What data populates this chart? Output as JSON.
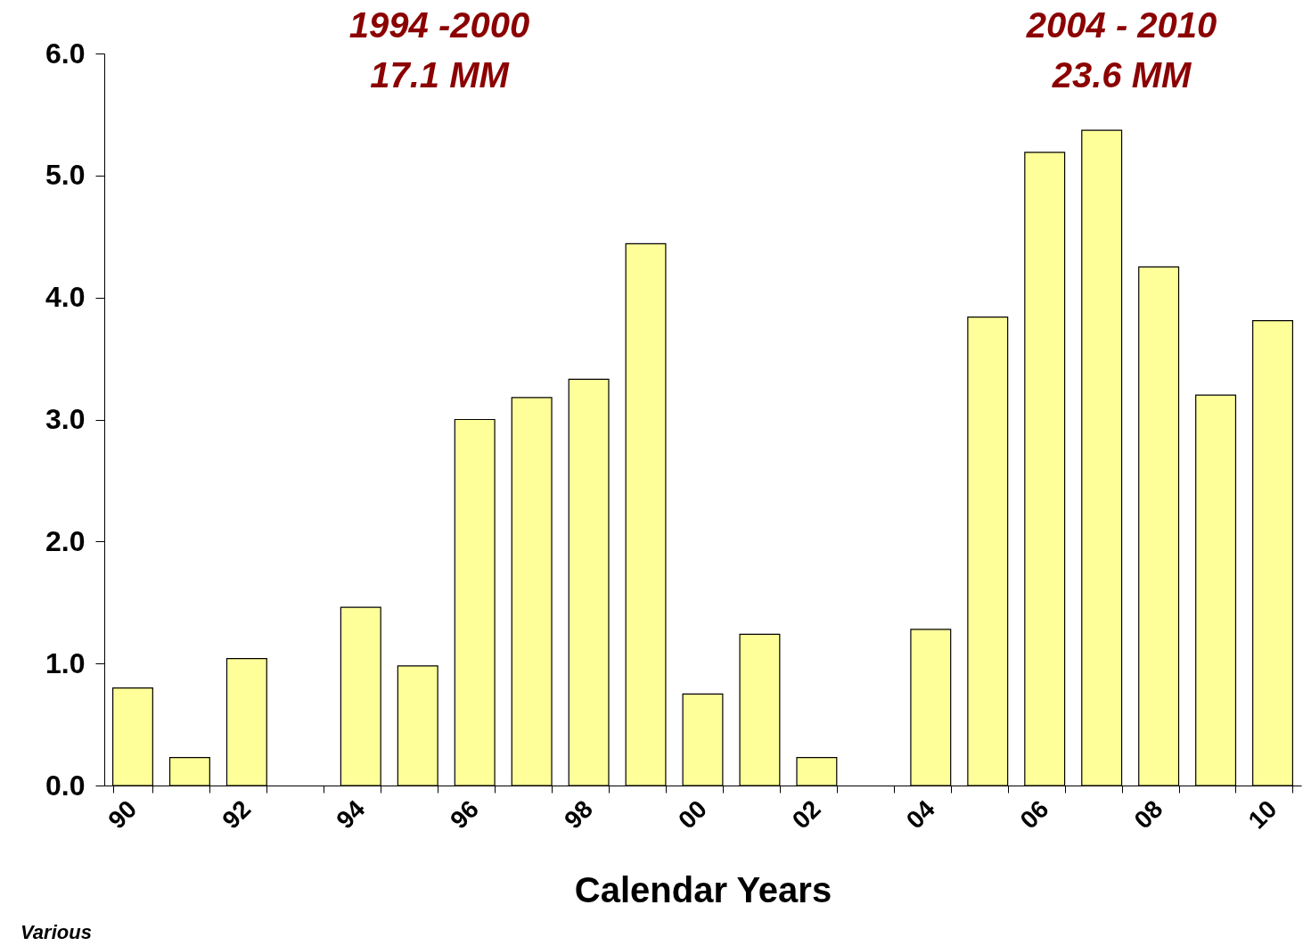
{
  "chart_data": {
    "type": "bar",
    "xlabel": "Calendar Years",
    "categories": [
      "90",
      null,
      "92",
      null,
      "94",
      null,
      "96",
      null,
      "98",
      null,
      "00",
      null,
      "02",
      null,
      "04",
      null,
      "06",
      null,
      "08",
      null,
      "10"
    ],
    "values": [
      0.8,
      0.23,
      1.04,
      null,
      1.46,
      0.98,
      3.0,
      3.18,
      3.33,
      4.44,
      0.75,
      1.24,
      0.23,
      null,
      1.28,
      3.84,
      5.19,
      5.37,
      4.25,
      3.2,
      3.81
    ],
    "color": "#ffff99",
    "ylim": [
      0,
      6
    ],
    "yticks": [
      {
        "value": 0,
        "label": "0.0"
      },
      {
        "value": 1,
        "label": "1.0"
      },
      {
        "value": 2,
        "label": "2.0"
      },
      {
        "value": 3,
        "label": "3.0"
      },
      {
        "value": 4,
        "label": "4.0"
      },
      {
        "value": 5,
        "label": "5.0"
      },
      {
        "value": 6,
        "label": "6.0"
      }
    ],
    "grid": false,
    "annotations": [
      "1994 -2000\n17.1 MM",
      "2004 - 2010\n23.6 MM",
      "Various"
    ]
  }
}
